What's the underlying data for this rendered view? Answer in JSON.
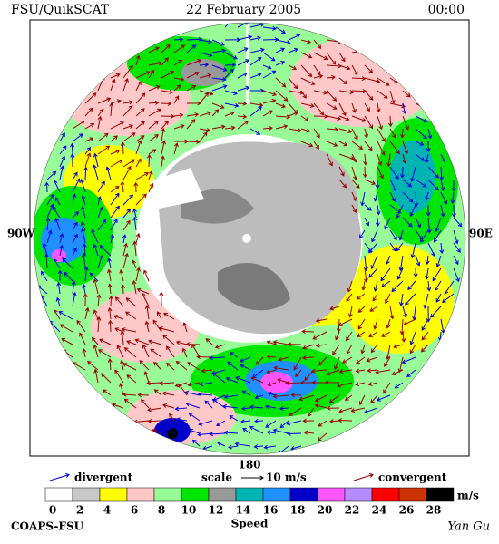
{
  "header": {
    "product": "FSU/QuikSCAT",
    "date": "22 February 2005",
    "time": "00:00"
  },
  "map": {
    "west_label": "90W",
    "east_label": "90E",
    "south_label": "180"
  },
  "legend": {
    "divergent": "divergent",
    "scale": "scale",
    "scale_value": "10 m/s",
    "convergent": "convergent",
    "divergent_color": "#0000dd",
    "convergent_color": "#990000"
  },
  "colorbar": {
    "ticks": [
      0,
      2,
      4,
      6,
      8,
      10,
      12,
      14,
      16,
      18,
      20,
      22,
      24,
      26,
      28
    ],
    "colors": [
      "#ffffff",
      "#c8c8c8",
      "#ffff00",
      "#ffc8c8",
      "#98fb98",
      "#00e600",
      "#999999",
      "#00b4b4",
      "#2090ff",
      "#0000c8",
      "#ff55ff",
      "#b48cff",
      "#ff0000",
      "#cc3300",
      "#000000"
    ],
    "unit": "m/s",
    "title": "Speed"
  },
  "footer": {
    "left": "COAPS-FSU",
    "right": "Yan Gu"
  }
}
